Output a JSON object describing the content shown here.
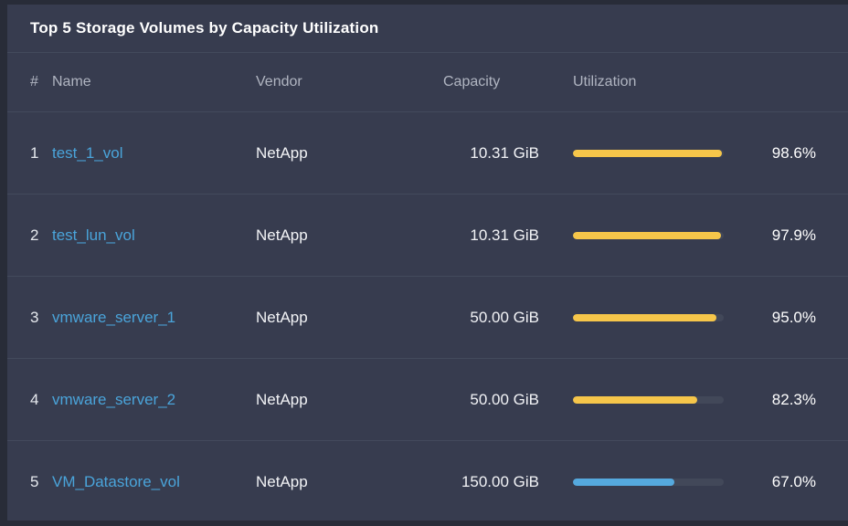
{
  "panel": {
    "title": "Top 5 Storage Volumes by Capacity Utilization"
  },
  "table": {
    "headers": {
      "index": "#",
      "name": "Name",
      "vendor": "Vendor",
      "capacity": "Capacity",
      "utilization": "Utilization"
    },
    "rows": [
      {
        "index": "1",
        "name": "test_1_vol",
        "vendor": "NetApp",
        "capacity": "10.31 GiB",
        "utilization_pct": 98.6,
        "utilization_label": "98.6%",
        "bar_color": "#f6c64a"
      },
      {
        "index": "2",
        "name": "test_lun_vol",
        "vendor": "NetApp",
        "capacity": "10.31 GiB",
        "utilization_pct": 97.9,
        "utilization_label": "97.9%",
        "bar_color": "#f6c64a"
      },
      {
        "index": "3",
        "name": "vmware_server_1",
        "vendor": "NetApp",
        "capacity": "50.00 GiB",
        "utilization_pct": 95.0,
        "utilization_label": "95.0%",
        "bar_color": "#f6c64a"
      },
      {
        "index": "4",
        "name": "vmware_server_2",
        "vendor": "NetApp",
        "capacity": "50.00 GiB",
        "utilization_pct": 82.3,
        "utilization_label": "82.3%",
        "bar_color": "#f6c64a"
      },
      {
        "index": "5",
        "name": "VM_Datastore_vol",
        "vendor": "NetApp",
        "capacity": "150.00 GiB",
        "utilization_pct": 67.0,
        "utilization_label": "67.0%",
        "bar_color": "#55a9de"
      }
    ]
  },
  "colors": {
    "panel_background": "#373c4f",
    "page_background": "#282c38",
    "separator": "#434a5c",
    "header_text": "#b0b5c1",
    "body_text": "#f2f3f6",
    "link_blue": "#4aa4da",
    "bar_track": "#424859",
    "bar_warning_yellow": "#f6c64a",
    "bar_normal_blue": "#55a9de"
  }
}
